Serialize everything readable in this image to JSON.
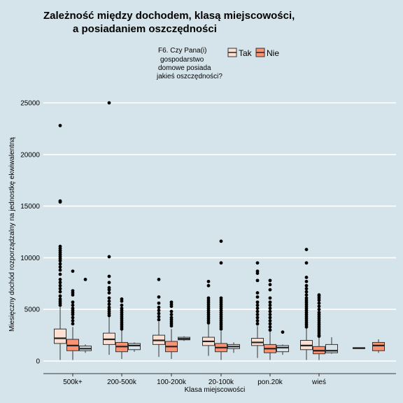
{
  "chart_data": {
    "type": "boxplot",
    "title_lines": [
      "Zależność między dochodem, klasą miejscowości,",
      "a posiadaniem oszczędności"
    ],
    "xlabel": "Klasa miejscowości",
    "ylabel": "Miesięczny dochód rozporządzalny na jednostkę ekwiwalentną",
    "ylim": [
      -1200,
      26000
    ],
    "yticks": [
      0,
      5000,
      10000,
      15000,
      20000,
      25000
    ],
    "grid": true,
    "categories": [
      "500k+",
      "200-500k",
      "100-200k",
      "20-100k",
      "pon.20k",
      "wieś"
    ],
    "legend": {
      "title_lines": [
        "F6. Czy Pana(i)",
        "gospodarstwo",
        "domowe posiada",
        "jakieś oszczędności?"
      ],
      "position": "top",
      "entries": [
        {
          "label": "Tak",
          "color": "#fee0d2"
        },
        {
          "label": "Nie",
          "color": "#fc9272"
        }
      ]
    },
    "series": [
      {
        "name": "Tak",
        "color": "#fee0d2",
        "boxes": [
          {
            "category": "500k+",
            "lower": 100,
            "q1": 1700,
            "median": 2200,
            "q3": 3100,
            "upper": 5200,
            "outliers": [
              22800,
              15400,
              15500,
              11100,
              10900,
              10700,
              10500,
              10300,
              10100,
              9900,
              9700,
              9400,
              9100,
              8800,
              8400,
              7900,
              7600,
              7300,
              7000,
              6700,
              6300,
              6000,
              5800,
              5600,
              5400
            ]
          },
          {
            "category": "200-500k",
            "lower": 600,
            "q1": 1600,
            "median": 2100,
            "q3": 2700,
            "upper": 4300,
            "outliers": [
              25000,
              10100,
              8200,
              7600,
              7100,
              6900,
              6600,
              6100,
              5800,
              5500,
              5200,
              5000,
              4800,
              4600,
              4400
            ]
          },
          {
            "category": "100-200k",
            "lower": 400,
            "q1": 1600,
            "median": 2000,
            "q3": 2500,
            "upper": 3800,
            "outliers": [
              7900,
              6200,
              5600,
              5200,
              4900,
              4600,
              4300,
              4000
            ]
          },
          {
            "category": "20-100k",
            "lower": 500,
            "q1": 1500,
            "median": 1900,
            "q3": 2300,
            "upper": 3600,
            "outliers": [
              7700,
              7300,
              6100,
              5900,
              5700,
              5500,
              5300,
              5100,
              4900,
              4700,
              4500,
              4300,
              4100,
              3900,
              3700
            ]
          },
          {
            "category": "pon.20k",
            "lower": 300,
            "q1": 1500,
            "median": 1800,
            "q3": 2200,
            "upper": 3400,
            "outliers": [
              9500,
              8700,
              8500,
              7800,
              6600,
              6200,
              5700,
              5400,
              5100,
              4800,
              4500,
              4200,
              3900,
              3600
            ]
          },
          {
            "category": "wieś",
            "lower": 100,
            "q1": 1100,
            "median": 1500,
            "q3": 2000,
            "upper": 3200,
            "outliers": [
              10800,
              9500,
              8100,
              7700,
              7300,
              7000,
              6700,
              6400,
              6100,
              5900,
              5700,
              5500,
              5300,
              5100,
              4900,
              4700,
              4500,
              4300,
              4100,
              3900,
              3700,
              3500,
              3300
            ]
          }
        ]
      },
      {
        "name": "Nie",
        "color": "#fc9272",
        "boxes": [
          {
            "category": "500k+",
            "lower": 100,
            "q1": 1000,
            "median": 1500,
            "q3": 2100,
            "upper": 3300,
            "outliers": [
              8700,
              6800,
              6600,
              6400,
              5700,
              5400,
              5100,
              4900,
              4700,
              4500,
              4200,
              3900,
              3600
            ]
          },
          {
            "category": "200-500k",
            "lower": 200,
            "q1": 900,
            "median": 1400,
            "q3": 1800,
            "upper": 3000,
            "outliers": [
              6000,
              5800,
              5400,
              5100,
              4900,
              4700,
              4500,
              4300,
              4100,
              3900,
              3700,
              3500,
              3300,
              3100
            ]
          },
          {
            "category": "100-200k",
            "lower": 200,
            "q1": 900,
            "median": 1400,
            "q3": 1900,
            "upper": 3100,
            "outliers": [
              5700,
              5500,
              5300,
              4800,
              4500,
              4200,
              4000,
              3800,
              3600,
              3400
            ]
          },
          {
            "category": "20-100k",
            "lower": 100,
            "q1": 900,
            "median": 1300,
            "q3": 1700,
            "upper": 2900,
            "outliers": [
              11600,
              9500,
              6100,
              5900,
              5700,
              5500,
              5300,
              5100,
              4900,
              4700,
              4500,
              4300,
              4100,
              3900,
              3700,
              3500,
              3300,
              3100
            ]
          },
          {
            "category": "pon.20k",
            "lower": 100,
            "q1": 800,
            "median": 1200,
            "q3": 1600,
            "upper": 2900,
            "outliers": [
              7800,
              7400,
              6900,
              6100,
              5700,
              5400,
              5100,
              4800,
              4500,
              4200,
              3900,
              3600,
              3300,
              3000
            ]
          },
          {
            "category": "wieś",
            "lower": 100,
            "q1": 700,
            "median": 1000,
            "q3": 1400,
            "upper": 2300,
            "outliers": [
              6400,
              6300,
              6100,
              5900,
              5600,
              5300,
              5000,
              4700,
              4500,
              4300,
              4100,
              3900,
              3700,
              3500,
              3300,
              3100,
              2900,
              2700,
              2500,
              2400
            ]
          }
        ]
      },
      {
        "name": "",
        "color": "#d5e4eb",
        "boxes": [
          {
            "category": "500k+",
            "lower": 800,
            "q1": 1000,
            "median": 1200,
            "q3": 1450,
            "upper": 1600,
            "outliers": [
              7900
            ]
          },
          {
            "category": "200-500k",
            "lower": 900,
            "q1": 1100,
            "median": 1500,
            "q3": 1700,
            "upper": 1800,
            "outliers": []
          },
          {
            "category": "100-200k",
            "lower": 1950,
            "q1": 2050,
            "median": 2150,
            "q3": 2300,
            "upper": 2400,
            "outliers": []
          },
          {
            "category": "20-100k",
            "lower": 800,
            "q1": 1200,
            "median": 1400,
            "q3": 1600,
            "upper": 1800,
            "outliers": []
          },
          {
            "category": "pon.20k",
            "lower": 600,
            "q1": 900,
            "median": 1300,
            "q3": 1500,
            "upper": 1600,
            "outliers": [
              2800
            ]
          },
          {
            "category": "wieś",
            "lower": 700,
            "q1": 800,
            "median": 1000,
            "q3": 1600,
            "upper": 2300,
            "outliers": []
          }
        ]
      }
    ],
    "extra_boxes": [
      {
        "label": "",
        "color": "#d5e4eb",
        "lower": 1200,
        "q1": 1200,
        "median": 1250,
        "q3": 1300,
        "upper": 1300,
        "outliers": []
      },
      {
        "label": "",
        "color": "#fc9272",
        "lower": 800,
        "q1": 1000,
        "median": 1500,
        "q3": 1800,
        "upper": 2100,
        "outliers": []
      }
    ]
  }
}
